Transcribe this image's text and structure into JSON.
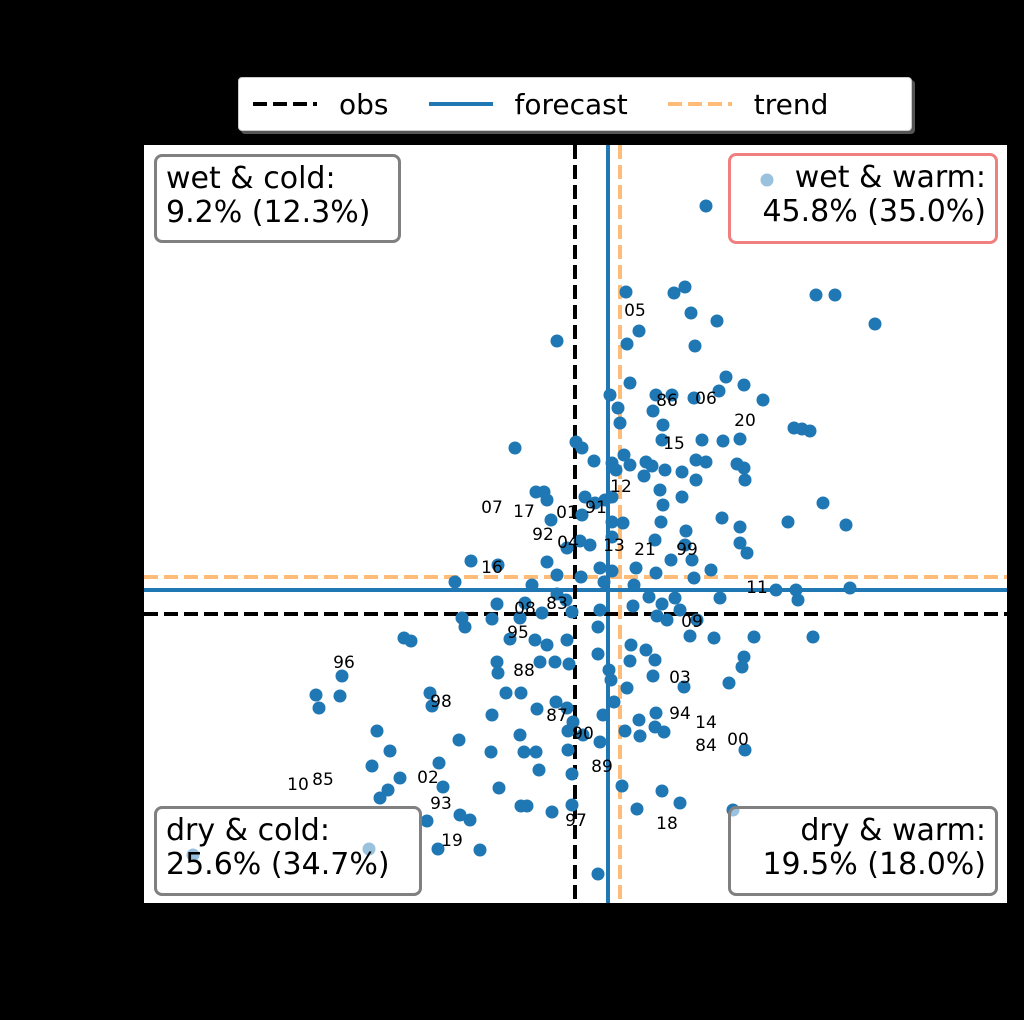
{
  "chart_data": {
    "type": "scatter",
    "title": "",
    "xlabel": "",
    "ylabel": "",
    "xlim": [
      -43.1,
      43.2
    ],
    "ylim": [
      -28.9,
      46.9
    ],
    "grid": false,
    "legend": {
      "placement": "top-center",
      "entries": [
        {
          "label": "obs",
          "style": "dashed",
          "color": "#000000"
        },
        {
          "label": "forecast",
          "style": "solid",
          "color": "#1f77b4"
        },
        {
          "label": "trend",
          "style": "dashed",
          "color": "#ffbb78"
        }
      ]
    },
    "reference_lines": {
      "obs": {
        "x": 0,
        "y": 0
      },
      "forecast": {
        "x": 3.3,
        "y": 2.4
      },
      "trend": {
        "x": 4.5,
        "y": 3.7
      }
    },
    "point_color": "#1f77b4",
    "points": [
      [
        13.1,
        40.8
      ],
      [
        5.1,
        32.2
      ],
      [
        9.9,
        32.1
      ],
      [
        11,
        32.7
      ],
      [
        24.1,
        31.9
      ],
      [
        26,
        31.9
      ],
      [
        30,
        29
      ],
      [
        11.6,
        30.1
      ],
      [
        6.4,
        28.3
      ],
      [
        14.2,
        29.3
      ],
      [
        -1.8,
        27.3
      ],
      [
        5.2,
        27
      ],
      [
        12,
        26.8
      ],
      [
        5.5,
        23.1
      ],
      [
        15.1,
        23.7
      ],
      [
        16.9,
        22.9
      ],
      [
        18.8,
        21.4
      ],
      [
        3.5,
        21.9
      ],
      [
        8.1,
        21.9
      ],
      [
        9.7,
        21.9
      ],
      [
        11.9,
        21.6
      ],
      [
        14.4,
        22.3
      ],
      [
        4.3,
        20.6
      ],
      [
        4.5,
        19.1
      ],
      [
        7.8,
        20.3
      ],
      [
        8.8,
        18.9
      ],
      [
        21.9,
        18.6
      ],
      [
        22.7,
        18.5
      ],
      [
        23.5,
        18.3
      ],
      [
        -6,
        16.6
      ],
      [
        0.1,
        17.2
      ],
      [
        0.7,
        16.6
      ],
      [
        12.7,
        17.4
      ],
      [
        8.7,
        17.4
      ],
      [
        14.8,
        17.3
      ],
      [
        16.5,
        17.5
      ],
      [
        1.9,
        15.3
      ],
      [
        3.7,
        15.1
      ],
      [
        4.9,
        15.9
      ],
      [
        12.1,
        15.4
      ],
      [
        13.1,
        15.2
      ],
      [
        16.9,
        14.6
      ],
      [
        16.2,
        15
      ],
      [
        7.1,
        15.2
      ],
      [
        7.7,
        14.8
      ],
      [
        5.5,
        14.9
      ],
      [
        4.1,
        14.4
      ],
      [
        6.9,
        13.8
      ],
      [
        9,
        14.4
      ],
      [
        10.7,
        14.2
      ],
      [
        12.1,
        13.4
      ],
      [
        17,
        13.4
      ],
      [
        8.5,
        12.4
      ],
      [
        10.7,
        11.7
      ],
      [
        -3.9,
        12.2
      ],
      [
        -3.1,
        12.2
      ],
      [
        -2.8,
        11.4
      ],
      [
        1,
        11.7
      ],
      [
        2,
        11.1
      ],
      [
        3,
        11.4
      ],
      [
        3.7,
        11.7
      ],
      [
        8.8,
        10.9
      ],
      [
        4.8,
        9.1
      ],
      [
        3.7,
        9.2
      ],
      [
        11.1,
        8.3
      ],
      [
        14.7,
        9.6
      ],
      [
        16.5,
        8.7
      ],
      [
        21.3,
        9.2
      ],
      [
        24.8,
        11.1
      ],
      [
        27.1,
        8.9
      ],
      [
        -2.4,
        9.4
      ],
      [
        0.7,
        9.9
      ],
      [
        0.5,
        7.3
      ],
      [
        -0.8,
        6.6
      ],
      [
        1.5,
        6.9
      ],
      [
        3.7,
        7.7
      ],
      [
        8.6,
        9.2
      ],
      [
        11,
        6.9
      ],
      [
        16.5,
        7.1
      ],
      [
        17.2,
        6.1
      ],
      [
        8,
        7.4
      ],
      [
        9.6,
        5.4
      ],
      [
        11.7,
        5.4
      ],
      [
        13.6,
        4.4
      ],
      [
        -10.4,
        5.3
      ],
      [
        -7.7,
        4.9
      ],
      [
        -2.8,
        5.2
      ],
      [
        -1.8,
        3.9
      ],
      [
        0.6,
        3.7
      ],
      [
        2.5,
        4.6
      ],
      [
        3.7,
        4.3
      ],
      [
        6.1,
        4.6
      ],
      [
        8.1,
        4.1
      ],
      [
        11.9,
        3.6
      ],
      [
        -12,
        3.2
      ],
      [
        -4.3,
        2.9
      ],
      [
        -1.8,
        2
      ],
      [
        2.9,
        3.2
      ],
      [
        5.9,
        2.9
      ],
      [
        7.4,
        1.7
      ],
      [
        10,
        1.6
      ],
      [
        14.5,
        1.6
      ],
      [
        20.1,
        2.4
      ],
      [
        22.1,
        2.4
      ],
      [
        22.3,
        1.4
      ],
      [
        27.5,
        2.6
      ],
      [
        -7.8,
        1
      ],
      [
        -5,
        1.1
      ],
      [
        -0.9,
        1.4
      ],
      [
        5.8,
        0.8
      ],
      [
        8.7,
        1
      ],
      [
        -5.5,
        -0.4
      ],
      [
        -3.3,
        0.1
      ],
      [
        -0.3,
        0.2
      ],
      [
        2.5,
        0.4
      ],
      [
        8.2,
        -0.2
      ],
      [
        10.5,
        0.4
      ],
      [
        12.2,
        -0.6
      ],
      [
        13.9,
        -2.4
      ],
      [
        17.9,
        -2.3
      ],
      [
        23.8,
        -2.3
      ],
      [
        -17.1,
        -2.4
      ],
      [
        -16.4,
        -2.7
      ],
      [
        -11.3,
        -0.4
      ],
      [
        -11,
        -1.3
      ],
      [
        -8.3,
        -0.5
      ],
      [
        -4,
        -2.6
      ],
      [
        -2.8,
        -3.1
      ],
      [
        -0.8,
        -2.6
      ],
      [
        2.3,
        -1.3
      ],
      [
        5.6,
        -3.1
      ],
      [
        9.2,
        -0.6
      ],
      [
        11.5,
        -2.2
      ],
      [
        7.1,
        -3.6
      ],
      [
        5.5,
        -4.7
      ],
      [
        16.9,
        -4.3
      ],
      [
        16.7,
        -5.3
      ],
      [
        -6.5,
        -2.5
      ],
      [
        -7.8,
        -4.8
      ],
      [
        -7.7,
        -5.9
      ],
      [
        -3.5,
        -4.8
      ],
      [
        -2,
        -4.8
      ],
      [
        -0.6,
        -5
      ],
      [
        2.3,
        -4
      ],
      [
        3.4,
        -5.6
      ],
      [
        3.6,
        -6.6
      ],
      [
        8,
        -4.6
      ],
      [
        -23.3,
        -6.2
      ],
      [
        -25.9,
        -8.1
      ],
      [
        -25.6,
        -9.4
      ],
      [
        -23.5,
        -8.2
      ],
      [
        -14.5,
        -7.9
      ],
      [
        -14.3,
        -9.2
      ],
      [
        10.9,
        -7.3
      ],
      [
        15.4,
        -6.9
      ],
      [
        5.2,
        -7.4
      ],
      [
        7.8,
        -6.2
      ],
      [
        -8.3,
        -10.1
      ],
      [
        -6.9,
        -7.9
      ],
      [
        -5.4,
        -7.9
      ],
      [
        -3.8,
        -9.5
      ],
      [
        -1.9,
        -8.8
      ],
      [
        -0.8,
        -9.4
      ],
      [
        -0.2,
        -10.8
      ],
      [
        2.8,
        -10.1
      ],
      [
        3.9,
        -8.8
      ],
      [
        6.4,
        -10.6
      ],
      [
        8.1,
        -9.9
      ],
      [
        8,
        -11.3
      ],
      [
        -19.8,
        -11.7
      ],
      [
        -18.5,
        -13.7
      ],
      [
        -11.6,
        -12.6
      ],
      [
        -8.4,
        -13.8
      ],
      [
        -5.5,
        -12.1
      ],
      [
        -5.1,
        -13.8
      ],
      [
        -3.9,
        -13.8
      ],
      [
        -0.7,
        -11.7
      ],
      [
        0.8,
        -12.1
      ],
      [
        2.5,
        -12.8
      ],
      [
        5,
        -11.7
      ],
      [
        6.5,
        -12.2
      ],
      [
        8.9,
        -11.8
      ],
      [
        -0.7,
        -13.6
      ],
      [
        -0.3,
        -16
      ],
      [
        17,
        -13.6
      ],
      [
        -20.3,
        -15.2
      ],
      [
        -19.5,
        -18.4
      ],
      [
        -18.7,
        -17.6
      ],
      [
        -17.5,
        -16.4
      ],
      [
        -13.6,
        -14.9
      ],
      [
        -13.2,
        -17.3
      ],
      [
        -3.6,
        -15.6
      ],
      [
        -7.6,
        -17.4
      ],
      [
        -5.4,
        -19.2
      ],
      [
        -4.8,
        -19.2
      ],
      [
        -2.3,
        -19.8
      ],
      [
        -0.3,
        -19.1
      ],
      [
        4.7,
        -17.2
      ],
      [
        6.2,
        -19.5
      ],
      [
        8.7,
        -17.7
      ],
      [
        10.5,
        -18.9
      ],
      [
        15.8,
        -19.6
      ],
      [
        -14.8,
        -20.7
      ],
      [
        -13.7,
        -23.5
      ],
      [
        -11.5,
        -20.1
      ],
      [
        -10.5,
        -20.6
      ],
      [
        -9.5,
        -23.6
      ],
      [
        2.3,
        -26
      ],
      [
        -38.2,
        -24.1
      ],
      [
        -20.6,
        -23.5
      ],
      [
        19.2,
        43.4
      ]
    ],
    "year_labels": [
      {
        "text": "05",
        "x": 6,
        "y": 30.4
      },
      {
        "text": "86",
        "x": 9.2,
        "y": 21.4
      },
      {
        "text": "06",
        "x": 13.1,
        "y": 21.6
      },
      {
        "text": "20",
        "x": 17,
        "y": 19.4
      },
      {
        "text": "15",
        "x": 9.9,
        "y": 17.1
      },
      {
        "text": "12",
        "x": 4.6,
        "y": 12.8
      },
      {
        "text": "91",
        "x": 2.1,
        "y": 10.7
      },
      {
        "text": "07",
        "x": -8.3,
        "y": 10.7
      },
      {
        "text": "17",
        "x": -5.1,
        "y": 10.3
      },
      {
        "text": "01",
        "x": -3.2,
        "y": 10.2
      },
      {
        "text": "92",
        "x": -3.2,
        "y": 9.7
      },
      {
        "text": "04",
        "x": -3.1,
        "y": 8.9
      },
      {
        "text": "13",
        "x": 1.5,
        "y": 8.6
      },
      {
        "text": "21",
        "x": 4.6,
        "y": 6.5
      },
      {
        "text": "99",
        "x": 11.2,
        "y": 6.5
      },
      {
        "text": "16",
        "x": -8.3,
        "y": 4.7
      },
      {
        "text": "11",
        "x": 18.2,
        "y": 2.7
      },
      {
        "text": "08",
        "x": -5,
        "y": 0.6
      },
      {
        "text": "83",
        "x": -1.8,
        "y": 1.1
      },
      {
        "text": "09",
        "x": 11.7,
        "y": -0.7
      },
      {
        "text": "95",
        "x": -5.7,
        "y": -1.8
      },
      {
        "text": "88",
        "x": -5.1,
        "y": -3.9
      },
      {
        "text": "96",
        "x": -23.1,
        "y": -4.8
      },
      {
        "text": "03",
        "x": 10.5,
        "y": -6.3
      },
      {
        "text": "94",
        "x": 10.5,
        "y": -8.2
      },
      {
        "text": "98",
        "x": -13.4,
        "y": -8.7
      },
      {
        "text": "87",
        "x": -1.8,
        "y": -10.1
      },
      {
        "text": "14",
        "x": 13.1,
        "y": -10.8
      },
      {
        "text": "84",
        "x": 13.1,
        "y": -11.4
      },
      {
        "text": "90",
        "x": 0.8,
        "y": -11.9
      },
      {
        "text": "00",
        "x": 16.3,
        "y": -12.5
      },
      {
        "text": "02",
        "x": -14.7,
        "y": -16.3
      },
      {
        "text": "89",
        "x": 2.7,
        "y": -15.2
      },
      {
        "text": "10",
        "x": -27.7,
        "y": -18.7
      },
      {
        "text": "85",
        "x": -25.2,
        "y": -18.2
      },
      {
        "text": "97",
        "x": 0.1,
        "y": -20.6
      },
      {
        "text": "18",
        "x": 9.2,
        "y": -20.9
      },
      {
        "text": "19",
        "x": -14.7,
        "y": -22.6
      },
      {
        "text": "93",
        "x": -13.4,
        "y": -22.3
      }
    ],
    "quadrants": {
      "wet_cold": {
        "title": "wet & cold:",
        "value": "9.2% (12.3%)"
      },
      "wet_warm": {
        "title": "wet & warm:",
        "value": "45.8% (35.0%)",
        "highlight_color": "#f08080"
      },
      "dry_cold": {
        "title": "dry & cold:",
        "value": "25.6% (34.7%)"
      },
      "dry_warm": {
        "title": "dry & warm:",
        "value": "19.5% (18.0%)"
      }
    }
  }
}
